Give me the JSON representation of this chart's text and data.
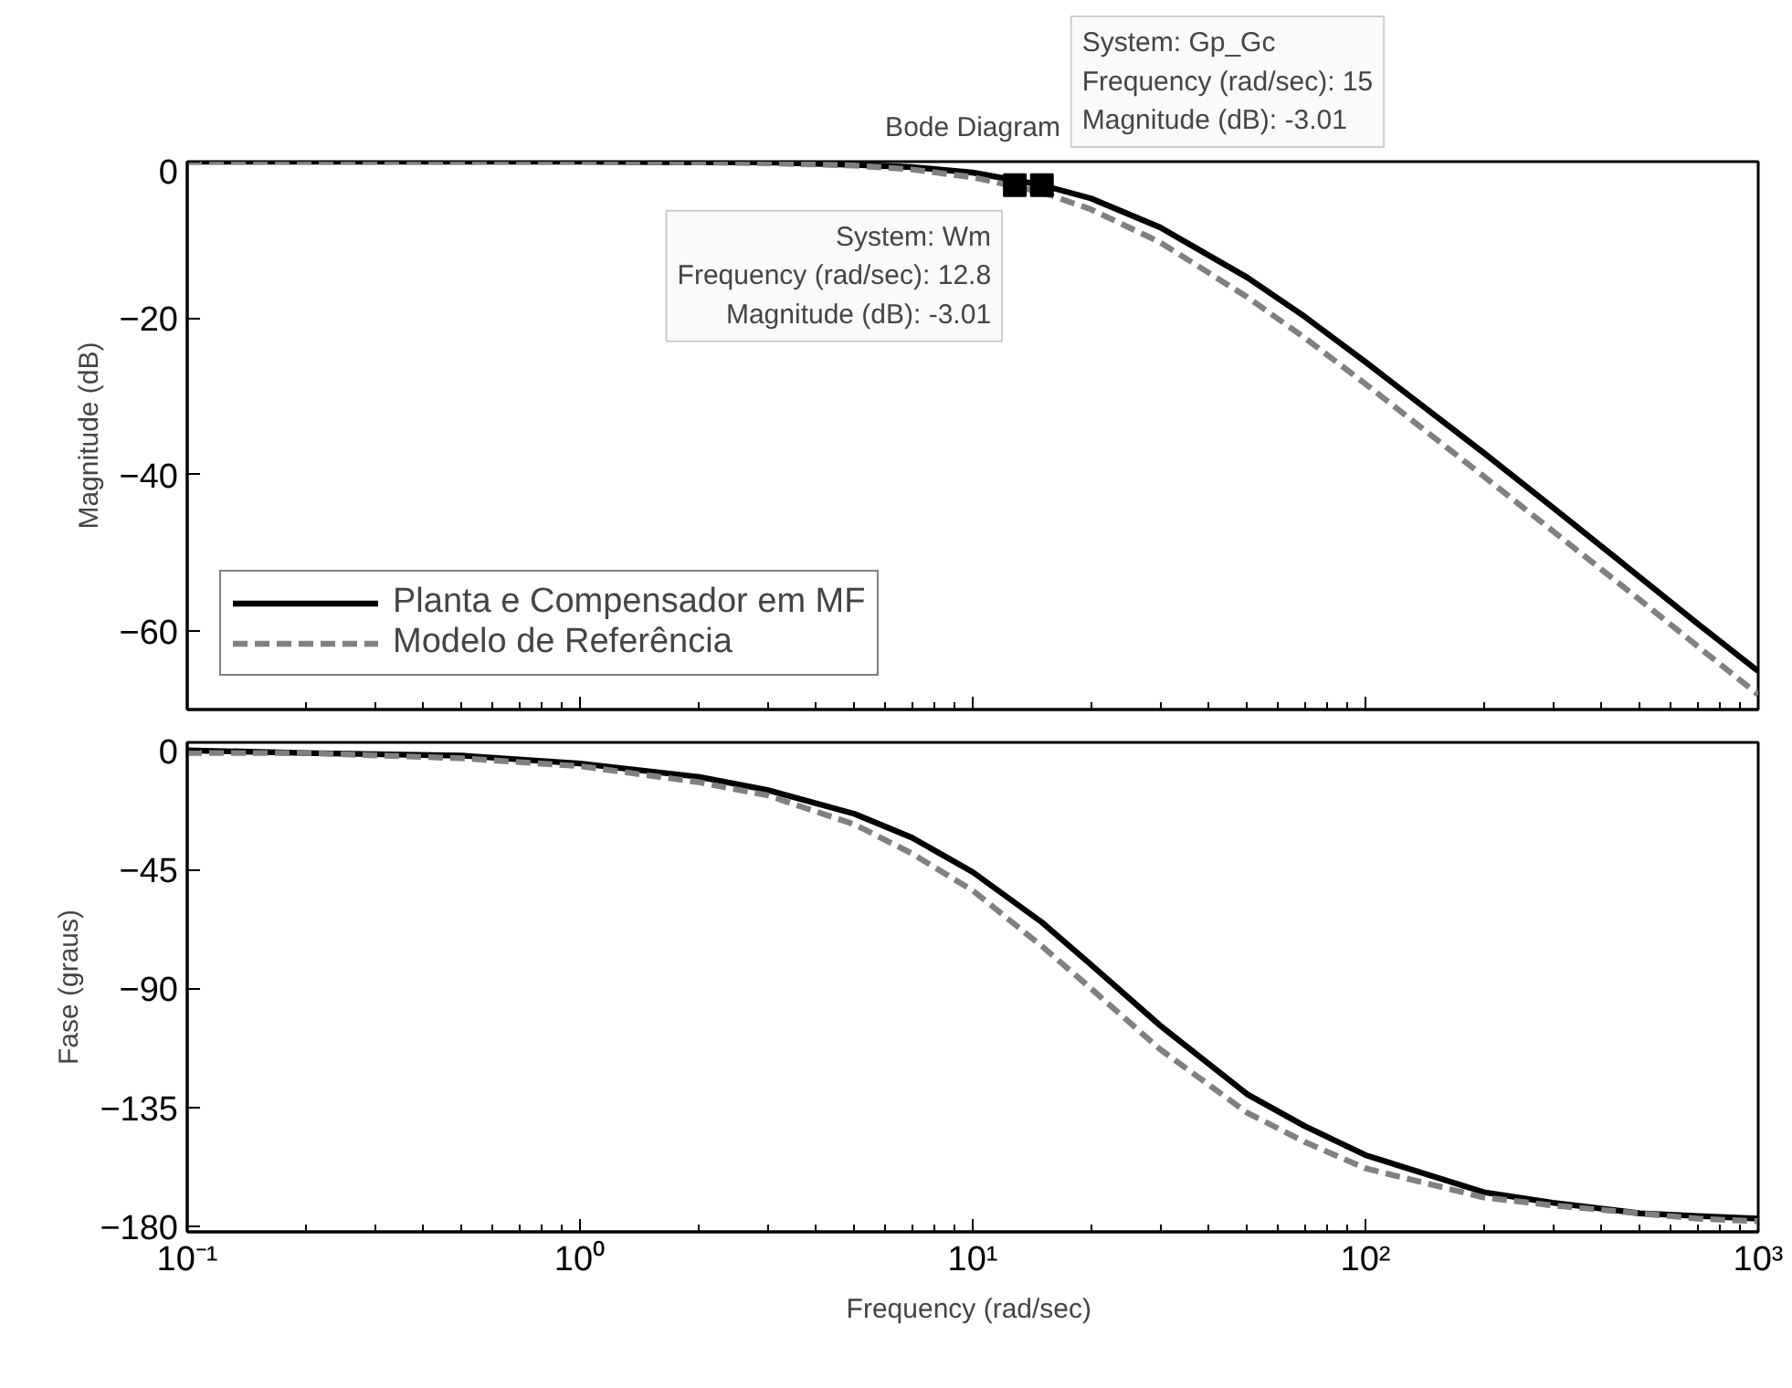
{
  "chart_data": [
    {
      "type": "line",
      "title": "Bode Diagram",
      "ylabel": "Magnitude (dB)",
      "log": "x",
      "x": [
        0.1,
        0.2,
        0.5,
        1,
        2,
        3,
        5,
        7,
        10,
        15,
        20,
        30,
        50,
        70,
        100,
        200,
        300,
        500,
        700,
        1000
      ],
      "xlim": [
        0.1,
        1000
      ],
      "xticks": [
        0.1,
        1,
        10,
        100,
        1000
      ],
      "ylim": [
        -70,
        0
      ],
      "yticks": [
        0,
        -20,
        -40,
        -60
      ],
      "tick_labels": "y",
      "grid": false,
      "legend": "bottom left",
      "series": [
        {
          "name": "Planta e Compensador em MF",
          "color": "#000000",
          "line_style": "solid",
          "values": [
            0,
            0,
            0,
            0,
            -0.1,
            -0.1,
            -0.4,
            -0.7,
            -1.4,
            -3.0,
            -4.7,
            -8.4,
            -14.8,
            -19.8,
            -25.6,
            -37.2,
            -44.2,
            -53.1,
            -59.0,
            -65.1
          ]
        },
        {
          "name": "Modelo de Referência",
          "color": "#808080",
          "line_style": "dashed",
          "values": [
            0,
            0,
            0,
            0,
            -0.1,
            -0.2,
            -0.5,
            -1.0,
            -2.0,
            -3.9,
            -6.1,
            -10.3,
            -17.3,
            -22.5,
            -28.4,
            -40.2,
            -47.2,
            -56.0,
            -61.9,
            -68.1
          ]
        }
      ],
      "annotations": [
        {
          "text": "System: Wm\nFrequency (rad/sec): 12.8\nMagnitude (dB): -3.01",
          "x": 12.8,
          "y": -3.01
        },
        {
          "text": "System: Gp_Gc\nFrequency (rad/sec): 15\nMagnitude (dB): -3.01",
          "x": 15,
          "y": -3.01
        }
      ]
    },
    {
      "type": "line",
      "xlabel": "Frequency  (rad/sec)",
      "ylabel": "Fase (graus)",
      "log": "x",
      "x": [
        0.1,
        0.2,
        0.5,
        1,
        2,
        3,
        5,
        7,
        10,
        15,
        20,
        30,
        50,
        70,
        100,
        200,
        300,
        500,
        700,
        1000
      ],
      "xlim": [
        0.1,
        1000
      ],
      "xticks": [
        {
          "value": 0.1,
          "label": "10⁻¹"
        },
        {
          "value": 1,
          "label": "10⁰"
        },
        {
          "value": 10,
          "label": "10¹"
        },
        {
          "value": 100,
          "label": "10²"
        },
        {
          "value": 1000,
          "label": "10³"
        }
      ],
      "ylim": [
        -182,
        3
      ],
      "yticks": [
        0,
        -45,
        -90,
        -135,
        -180
      ],
      "grid": false,
      "series": [
        {
          "color": "#000000",
          "line_style": "solid",
          "values": [
            0,
            -1,
            -2,
            -5,
            -10,
            -15,
            -24,
            -33,
            -46,
            -65,
            -81,
            -104,
            -130,
            -142,
            -153,
            -167,
            -171,
            -175,
            -176,
            -177
          ]
        },
        {
          "color": "#808080",
          "line_style": "dashed",
          "values": [
            -1,
            -1,
            -3,
            -6,
            -12,
            -17,
            -28,
            -39,
            -53,
            -74,
            -90,
            -113,
            -137,
            -148,
            -158,
            -169,
            -172,
            -175,
            -177,
            -178
          ]
        }
      ]
    }
  ]
}
